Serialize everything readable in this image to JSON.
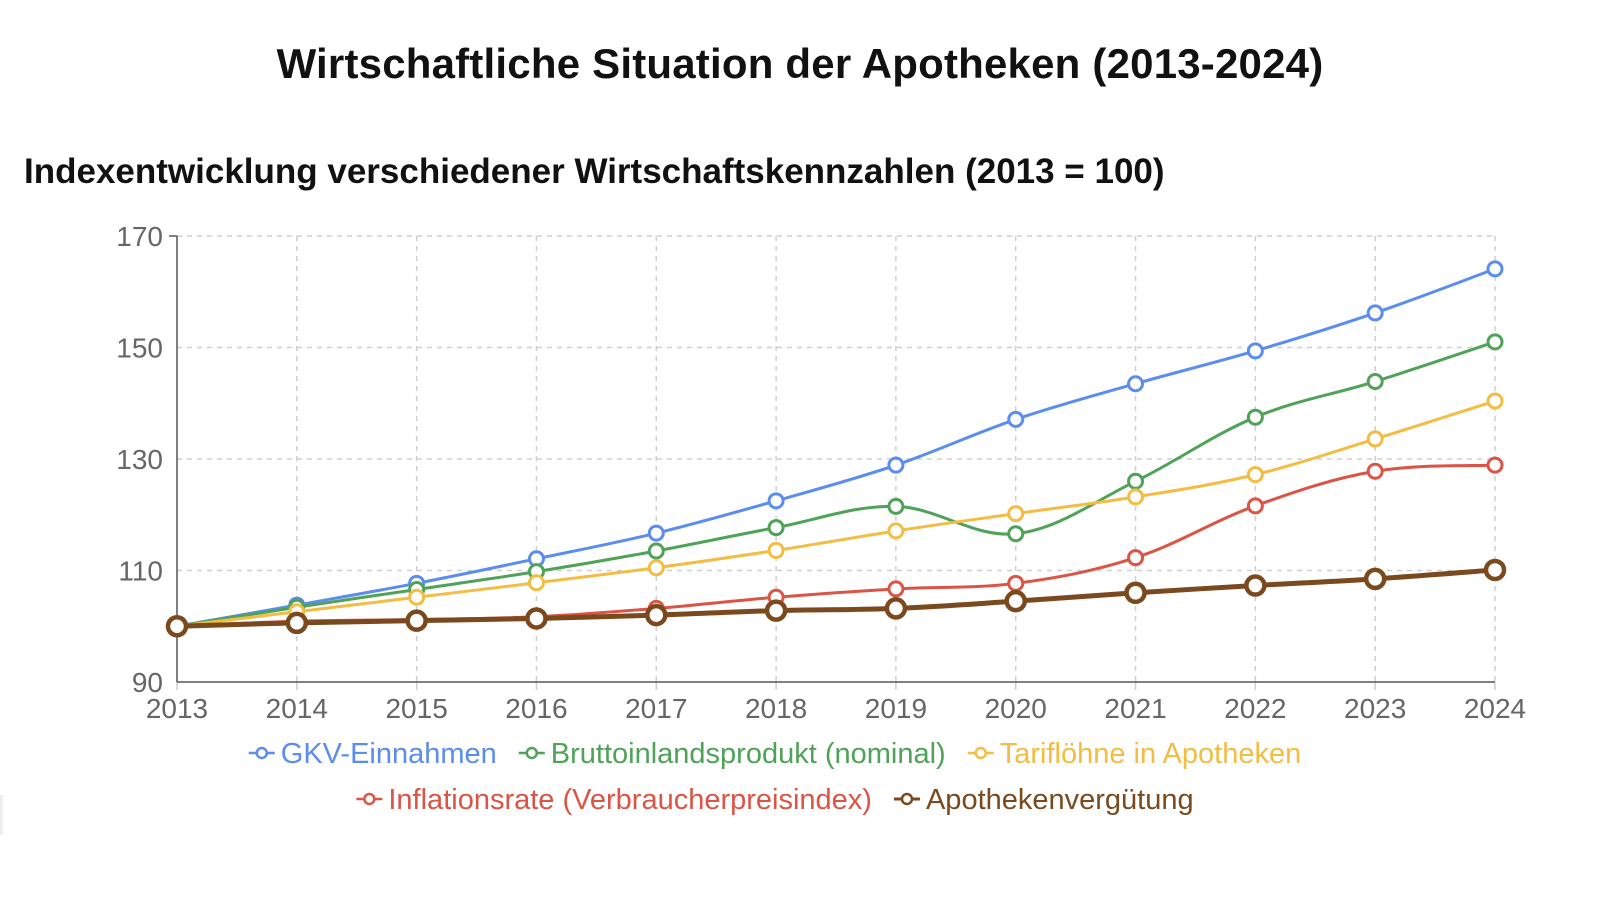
{
  "page": {
    "title": "Wirtschaftliche Situation der Apotheken (2013-2024)"
  },
  "chart_data": {
    "type": "line",
    "title": "Indexentwicklung verschiedener Wirtschaftskennzahlen (2013 = 100)",
    "xlabel": "",
    "ylabel": "",
    "x": [
      "2013",
      "2014",
      "2015",
      "2016",
      "2017",
      "2018",
      "2019",
      "2020",
      "2021",
      "2022",
      "2023",
      "2024"
    ],
    "ylim": [
      90,
      170
    ],
    "yticks": [
      90,
      110,
      130,
      150,
      170
    ],
    "grid": true,
    "legend_position": "bottom",
    "series": [
      {
        "name": "GKV-Einnahmen",
        "color": "#5b8def",
        "bold": false,
        "values": [
          100,
          103.8,
          107.7,
          112.1,
          116.7,
          122.5,
          128.9,
          137.1,
          143.5,
          149.4,
          156.2,
          164.1
        ]
      },
      {
        "name": "Bruttoinlandsprodukt (nominal)",
        "color": "#4fa257",
        "bold": false,
        "values": [
          100,
          103.4,
          106.6,
          109.8,
          113.5,
          117.7,
          121.5,
          116.6,
          126.0,
          137.5,
          143.9,
          151.0
        ]
      },
      {
        "name": "Tariflöhne in Apotheken",
        "color": "#f2bd42",
        "bold": false,
        "values": [
          100,
          102.6,
          105.2,
          107.8,
          110.5,
          113.6,
          117.1,
          120.2,
          123.2,
          127.2,
          133.6,
          140.4
        ]
      },
      {
        "name": "Inflationsrate (Verbraucherpreisindex)",
        "color": "#dc5445",
        "bold": false,
        "values": [
          100,
          100.9,
          101.2,
          101.7,
          103.2,
          105.2,
          106.7,
          107.7,
          112.3,
          121.6,
          127.8,
          128.9
        ]
      },
      {
        "name": "Apothekenvergütung",
        "color": "#7a4a1e",
        "bold": true,
        "values": [
          100,
          100.6,
          101.0,
          101.4,
          102.0,
          102.8,
          103.2,
          104.5,
          106.0,
          107.3,
          108.5,
          110.1
        ]
      }
    ]
  }
}
